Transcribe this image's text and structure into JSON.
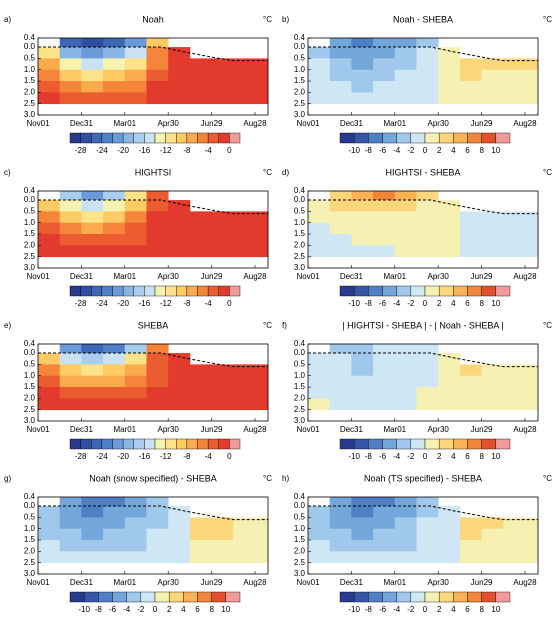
{
  "axes": {
    "xlim": [
      0,
      318
    ],
    "ylim": [
      -0.4,
      3.0
    ],
    "xticks": [
      {
        "value": 0,
        "label": "Nov01"
      },
      {
        "value": 60,
        "label": "Dec31"
      },
      {
        "value": 120,
        "label": "Mar01"
      },
      {
        "value": 180,
        "label": "Apr30"
      },
      {
        "value": 240,
        "label": "Jun29"
      },
      {
        "value": 300,
        "label": "Aug28"
      }
    ],
    "yticks": [
      {
        "value": -0.4,
        "label": "0.4"
      },
      {
        "value": 0,
        "label": "0.0"
      },
      {
        "value": 0.5,
        "label": "0.5"
      },
      {
        "value": 1,
        "label": "1.0"
      },
      {
        "value": 1.5,
        "label": "1.5"
      },
      {
        "value": 2,
        "label": "2.0"
      },
      {
        "value": 2.5,
        "label": "2.5"
      },
      {
        "value": 3,
        "label": "3.0"
      }
    ],
    "x_edges": [
      0,
      30,
      60,
      90,
      120,
      150,
      180,
      210,
      240,
      270,
      300,
      318
    ],
    "y_edges": [
      -0.4,
      0,
      0.5,
      1,
      1.5,
      2,
      2.5
    ],
    "surface": {
      "x": [
        0,
        170,
        200,
        250,
        270,
        318
      ],
      "y": [
        0,
        0,
        0.2,
        0.5,
        0.6,
        0.6
      ]
    }
  },
  "colorbars": {
    "absolute": {
      "bounds": [
        -30,
        -28,
        -26,
        -24,
        -22,
        -20,
        -18,
        -16,
        -14,
        -12,
        -10,
        -8,
        -6,
        -4,
        -2,
        0,
        2
      ],
      "colors": [
        "#283a8c",
        "#2f4ea3",
        "#3d66b7",
        "#4f80c8",
        "#6a9bd8",
        "#88b5e4",
        "#a8cdee",
        "#c8e2f4",
        "#f6f3b0",
        "#fce38a",
        "#fdca64",
        "#fbab4c",
        "#f6853c",
        "#ec5c31",
        "#e23a2c",
        "#f29a9a"
      ],
      "ticks": [
        -28,
        -24,
        -20,
        -16,
        -12,
        -8,
        -4,
        0
      ]
    },
    "difference": {
      "bounds": [
        -12,
        -10,
        -8,
        -6,
        -4,
        -2,
        0,
        2,
        4,
        6,
        8,
        10,
        12
      ],
      "colors": [
        "#283a8c",
        "#3756a8",
        "#4f7fc4",
        "#73a6da",
        "#a0c8ea",
        "#cfe6f5",
        "#f6f1b2",
        "#fcd67a",
        "#fbb255",
        "#f2853c",
        "#e3502e",
        "#f29a9a"
      ],
      "ticks": [
        -10,
        -8,
        -6,
        -4,
        -2,
        0,
        2,
        4,
        6,
        8,
        10
      ]
    }
  },
  "chart_data": [
    {
      "type": "heatmap",
      "label": "a)",
      "title": "Noah",
      "unit": "°C",
      "colorbar": "absolute",
      "z": [
        [
          null,
          -26,
          -28,
          -26,
          -22,
          -10,
          null,
          null,
          null,
          null,
          null
        ],
        [
          -12,
          -20,
          -22,
          -20,
          -16,
          -6,
          -2,
          null,
          null,
          null,
          null
        ],
        [
          -8,
          -14,
          -16,
          -14,
          -11,
          -5,
          -1,
          -1,
          -1,
          -1,
          -1
        ],
        [
          -5,
          -10,
          -11,
          -10,
          -8,
          -3,
          -1,
          -1,
          -1,
          -1,
          -1
        ],
        [
          -3,
          -6,
          -7,
          -6,
          -5,
          -2,
          -1,
          -1,
          -1,
          -1,
          -1
        ],
        [
          -2,
          -3,
          -4,
          -4,
          -3,
          -2,
          -1,
          -1,
          -1,
          -1,
          -1
        ]
      ]
    },
    {
      "type": "heatmap",
      "label": "b)",
      "title": "Noah - SHEBA",
      "unit": "°C",
      "colorbar": "difference",
      "z": [
        [
          null,
          -6,
          -7,
          -6,
          -5,
          -3,
          null,
          null,
          null,
          null,
          null
        ],
        [
          -3,
          -5,
          -6,
          -5,
          -4,
          -2,
          0,
          null,
          null,
          null,
          null
        ],
        [
          -2,
          -4,
          -5,
          -4,
          -3,
          -1,
          1,
          2,
          2,
          2,
          2
        ],
        [
          -2,
          -3,
          -4,
          -3,
          -2,
          -1,
          1,
          2,
          1,
          1,
          1
        ],
        [
          -1,
          -2,
          -3,
          -2,
          -2,
          -1,
          0,
          1,
          1,
          1,
          1
        ],
        [
          -1,
          -1,
          -2,
          -2,
          -1,
          -1,
          0,
          0,
          0,
          0,
          0
        ]
      ]
    },
    {
      "type": "heatmap",
      "label": "c)",
      "title": "HIGHTSI",
      "unit": "°C",
      "colorbar": "absolute",
      "z": [
        [
          null,
          -18,
          -22,
          -18,
          -12,
          -3,
          null,
          null,
          null,
          null,
          null
        ],
        [
          -10,
          -14,
          -16,
          -13,
          -9,
          -3,
          -1,
          null,
          null,
          null,
          null
        ],
        [
          -6,
          -10,
          -11,
          -9,
          -6,
          -2,
          -1,
          -1,
          -1,
          -1,
          -1
        ],
        [
          -4,
          -6,
          -7,
          -6,
          -4,
          -2,
          -1,
          -1,
          -1,
          -1,
          -1
        ],
        [
          -2,
          -4,
          -4,
          -4,
          -3,
          -1,
          -1,
          -1,
          -1,
          -1,
          -1
        ],
        [
          -1,
          -2,
          -2,
          -2,
          -2,
          -1,
          -1,
          -1,
          -1,
          -1,
          -1
        ]
      ]
    },
    {
      "type": "heatmap",
      "label": "d)",
      "title": "HIGHTSI - SHEBA",
      "unit": "°C",
      "colorbar": "difference",
      "z": [
        [
          null,
          3,
          4,
          6,
          5,
          2,
          null,
          null,
          null,
          null,
          null
        ],
        [
          1,
          2,
          3,
          3,
          2,
          1,
          0,
          null,
          null,
          null,
          null
        ],
        [
          0,
          1,
          1,
          1,
          1,
          0,
          0,
          -1,
          -1,
          -1,
          -1
        ],
        [
          -1,
          0,
          1,
          1,
          0,
          0,
          0,
          -1,
          -1,
          -1,
          -1
        ],
        [
          -1,
          -1,
          0,
          0,
          0,
          0,
          0,
          -1,
          -1,
          -1,
          -1
        ],
        [
          -1,
          -1,
          -1,
          -1,
          0,
          0,
          0,
          -1,
          -1,
          -1,
          -1
        ]
      ]
    },
    {
      "type": "heatmap",
      "label": "e)",
      "title": "SHEBA",
      "unit": "°C",
      "colorbar": "absolute",
      "z": [
        [
          null,
          -22,
          -26,
          -24,
          -18,
          -6,
          null,
          null,
          null,
          null,
          null
        ],
        [
          -9,
          -15,
          -17,
          -15,
          -12,
          -4,
          -1,
          null,
          null,
          null,
          null
        ],
        [
          -6,
          -10,
          -11,
          -10,
          -8,
          -4,
          -1,
          -2,
          -2,
          -2,
          -2
        ],
        [
          -3,
          -7,
          -7,
          -7,
          -6,
          -3,
          -1,
          -2,
          -2,
          -2,
          -2
        ],
        [
          -2,
          -4,
          -4,
          -4,
          -3,
          -2,
          -1,
          -2,
          -2,
          -2,
          -2
        ],
        [
          -1,
          -2,
          -2,
          -2,
          -2,
          -1,
          -1,
          -1,
          -1,
          -1,
          -1
        ]
      ]
    },
    {
      "type": "heatmap",
      "label": "f)",
      "title": "| HIGHTSI - SHEBA | - | Noah - SHEBA |",
      "unit": "°C",
      "colorbar": "difference",
      "z": [
        [
          null,
          -3,
          -4,
          -2,
          -2,
          -1,
          null,
          null,
          null,
          null,
          null
        ],
        [
          -1,
          -2,
          -3,
          -2,
          -2,
          -1,
          0,
          null,
          null,
          null,
          null
        ],
        [
          -1,
          -2,
          -3,
          -2,
          -1,
          -1,
          1,
          2,
          1,
          1,
          1
        ],
        [
          -1,
          -2,
          -2,
          -2,
          -1,
          -1,
          1,
          1,
          1,
          1,
          1
        ],
        [
          -1,
          -1,
          -2,
          -1,
          -1,
          0,
          0,
          1,
          1,
          0,
          0
        ],
        [
          0,
          -1,
          -1,
          -1,
          -1,
          0,
          0,
          0,
          0,
          0,
          0
        ]
      ]
    },
    {
      "type": "heatmap",
      "label": "g)",
      "title": "Noah (snow specified) - SHEBA",
      "unit": "°C",
      "colorbar": "difference",
      "z": [
        [
          null,
          -6,
          -8,
          -7,
          -6,
          -4,
          null,
          null,
          null,
          null,
          null
        ],
        [
          -4,
          -6,
          -7,
          -6,
          -5,
          -3,
          -1,
          null,
          null,
          null,
          null
        ],
        [
          -3,
          -5,
          -6,
          -5,
          -4,
          -3,
          -1,
          2,
          2,
          1,
          1
        ],
        [
          -3,
          -4,
          -5,
          -4,
          -4,
          -2,
          -1,
          2,
          2,
          1,
          1
        ],
        [
          -2,
          -3,
          -4,
          -3,
          -3,
          -2,
          -1,
          1,
          1,
          1,
          1
        ],
        [
          -1,
          -2,
          -2,
          -2,
          -2,
          -1,
          -1,
          1,
          1,
          0,
          0
        ]
      ]
    },
    {
      "type": "heatmap",
      "label": "h)",
      "title": "Noah (TS specified) - SHEBA",
      "unit": "°C",
      "colorbar": "difference",
      "z": [
        [
          null,
          -6,
          -8,
          -7,
          -6,
          -3,
          null,
          null,
          null,
          null,
          null
        ],
        [
          -4,
          -6,
          -7,
          -6,
          -5,
          -3,
          -1,
          null,
          null,
          null,
          null
        ],
        [
          -3,
          -5,
          -6,
          -5,
          -4,
          -2,
          -1,
          2,
          2,
          1,
          1
        ],
        [
          -3,
          -4,
          -5,
          -4,
          -3,
          -2,
          -1,
          2,
          1,
          1,
          1
        ],
        [
          -2,
          -3,
          -4,
          -3,
          -3,
          -2,
          -1,
          1,
          1,
          1,
          1
        ],
        [
          -1,
          -2,
          -2,
          -2,
          -2,
          -1,
          -1,
          1,
          0,
          0,
          0
        ]
      ]
    }
  ]
}
